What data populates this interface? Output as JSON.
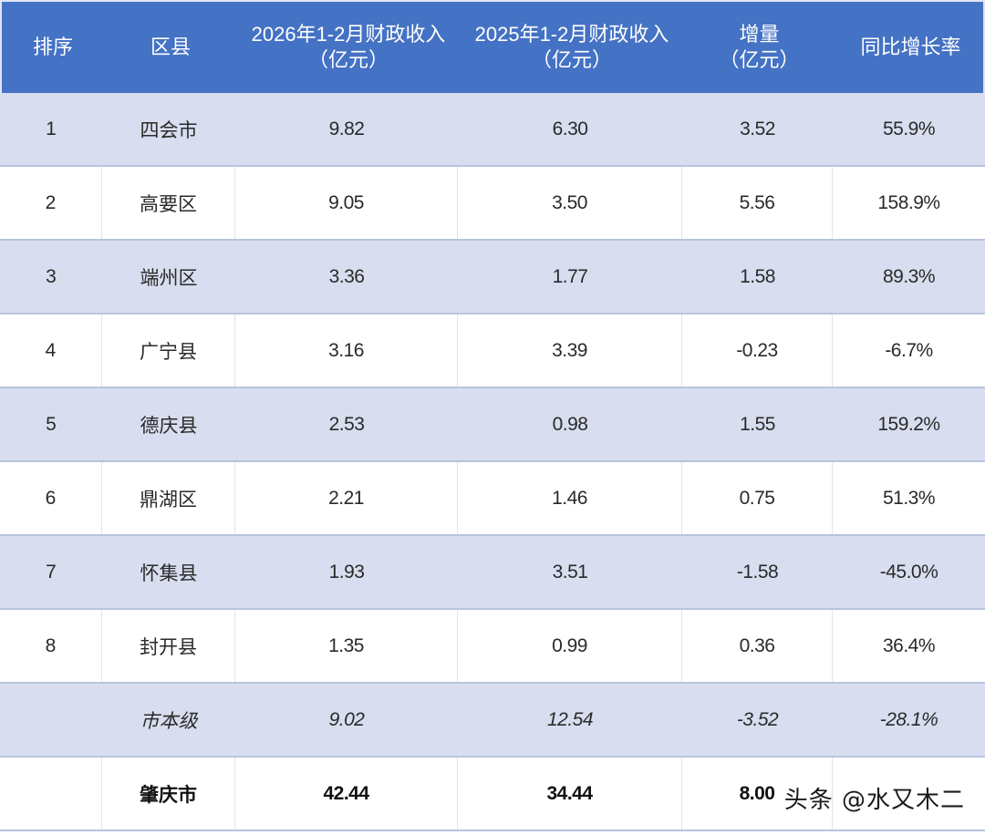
{
  "table": {
    "headers": [
      {
        "label": "排序"
      },
      {
        "label": "区县"
      },
      {
        "label": "2026年1-2月财政收入\n（亿元）"
      },
      {
        "label": "2025年1-2月财政收入\n（亿元）"
      },
      {
        "label": "增量\n（亿元）"
      },
      {
        "label": "同比增长率"
      }
    ],
    "rows": [
      {
        "rank": "1",
        "district": "四会市",
        "rev2026": "9.82",
        "rev2025": "6.30",
        "delta": "3.52",
        "yoy": "55.9%"
      },
      {
        "rank": "2",
        "district": "高要区",
        "rev2026": "9.05",
        "rev2025": "3.50",
        "delta": "5.56",
        "yoy": "158.9%"
      },
      {
        "rank": "3",
        "district": "端州区",
        "rev2026": "3.36",
        "rev2025": "1.77",
        "delta": "1.58",
        "yoy": "89.3%"
      },
      {
        "rank": "4",
        "district": "广宁县",
        "rev2026": "3.16",
        "rev2025": "3.39",
        "delta": "-0.23",
        "yoy": "-6.7%"
      },
      {
        "rank": "5",
        "district": "德庆县",
        "rev2026": "2.53",
        "rev2025": "0.98",
        "delta": "1.55",
        "yoy": "159.2%"
      },
      {
        "rank": "6",
        "district": "鼎湖区",
        "rev2026": "2.21",
        "rev2025": "1.46",
        "delta": "0.75",
        "yoy": "51.3%"
      },
      {
        "rank": "7",
        "district": "怀集县",
        "rev2026": "1.93",
        "rev2025": "3.51",
        "delta": "-1.58",
        "yoy": "-45.0%"
      },
      {
        "rank": "8",
        "district": "封开县",
        "rev2026": "1.35",
        "rev2025": "0.99",
        "delta": "0.36",
        "yoy": "36.4%"
      }
    ],
    "city_level": {
      "rank": "",
      "district": "市本级",
      "rev2026": "9.02",
      "rev2025": "12.54",
      "delta": "-3.52",
      "yoy": "-28.1%"
    },
    "total": {
      "rank": "",
      "district": "肇庆市",
      "rev2026": "42.44",
      "rev2025": "34.44",
      "delta": "8.00",
      "yoy": ""
    }
  },
  "watermark": "头条 @水又木二",
  "colors": {
    "header_bg": "#4472c4",
    "shaded_row_bg": "#d8deef",
    "plain_row_bg": "#ffffff"
  }
}
